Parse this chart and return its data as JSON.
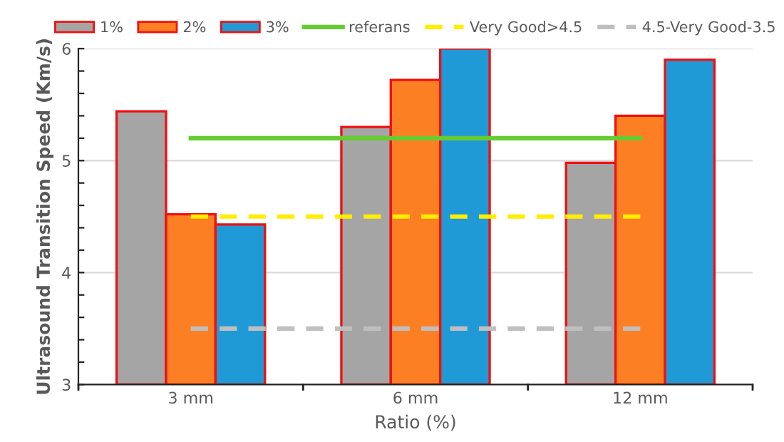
{
  "chart_data": {
    "type": "bar",
    "xlabel": "Ratio (%)",
    "ylabel": "Ultrasound Transition Speed (Km/s)",
    "categories": [
      "3 mm",
      "6 mm",
      "12 mm"
    ],
    "series": [
      {
        "name": "1%",
        "color": "#a5a5a5",
        "values": [
          5.44,
          5.3,
          4.98
        ]
      },
      {
        "name": "2%",
        "color": "#fd7f23",
        "values": [
          4.52,
          5.72,
          5.4
        ]
      },
      {
        "name": "3%",
        "color": "#1f9ad6",
        "values": [
          4.43,
          6.0,
          5.9
        ]
      },
      {
        "name": "referans",
        "type": "line",
        "color": "#66cc33",
        "line_style": "solid",
        "values": [
          5.2,
          5.2,
          5.2
        ]
      },
      {
        "name": "Very Good>4.5",
        "type": "line",
        "color": "#ffee00",
        "line_style": "dashed",
        "values": [
          4.5,
          4.5,
          4.5
        ]
      },
      {
        "name": "4.5-Very Good-3.5",
        "type": "line",
        "color": "#bfbfbf",
        "line_style": "dashed",
        "values": [
          3.5,
          3.5,
          3.5
        ]
      }
    ],
    "ylim": [
      3,
      6
    ],
    "yticks": [
      3,
      {
        "value": 3.2,
        "label": null
      },
      {
        "value": 3.4,
        "label": null
      },
      {
        "value": 3.6,
        "label": null
      },
      {
        "value": 3.8,
        "label": null
      },
      4,
      {
        "value": 4.2,
        "label": null
      },
      {
        "value": 4.4,
        "label": null
      },
      {
        "value": 4.6,
        "label": null
      },
      {
        "value": 4.8,
        "label": null
      },
      5,
      {
        "value": 5.2,
        "label": null
      },
      {
        "value": 5.4,
        "label": null
      },
      {
        "value": 5.6,
        "label": null
      },
      {
        "value": 5.8,
        "label": null
      },
      6
    ],
    "grid": "y",
    "legend": "top"
  }
}
